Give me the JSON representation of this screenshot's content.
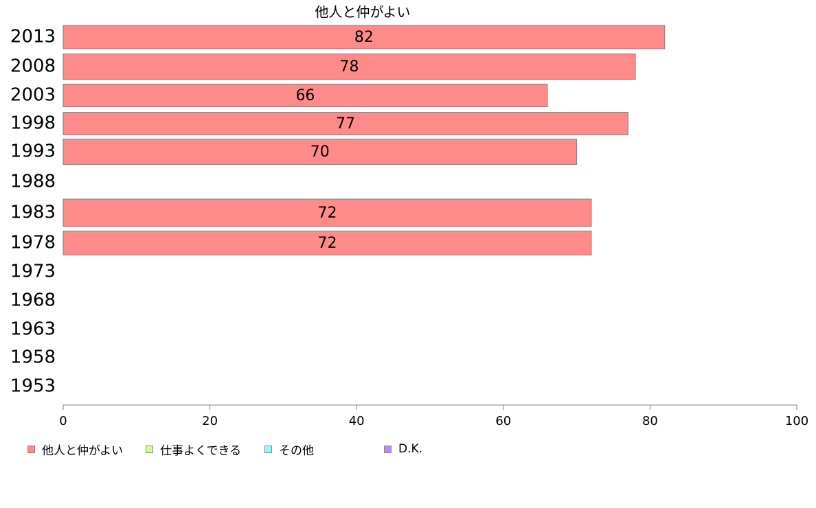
{
  "chart_data": {
    "type": "bar",
    "orientation": "horizontal",
    "title": "他人と仲がよい",
    "categories": [
      "2013",
      "2008",
      "2003",
      "1998",
      "1993",
      "1988",
      "1983",
      "1978",
      "1973",
      "1968",
      "1963",
      "1958",
      "1953"
    ],
    "series": [
      {
        "name": "他人と仲がよい",
        "color": "#ff8a8a",
        "values": [
          82,
          78,
          66,
          77,
          70,
          null,
          72,
          72,
          null,
          null,
          null,
          null,
          null
        ],
        "labels": [
          "82",
          "78",
          "66",
          "77",
          "70",
          "",
          "72",
          "72",
          "",
          "",
          "",
          "",
          ""
        ]
      }
    ],
    "xlim": [
      0,
      100
    ],
    "xticks": [
      "0",
      "20",
      "40",
      "60",
      "80",
      "100"
    ],
    "grid": false,
    "legend_position": "bottom-left",
    "legend": [
      {
        "label": "他人と仲がよい",
        "color": "#ff8a8a"
      },
      {
        "label": "仕事よくできる",
        "color": "#ccff88"
      },
      {
        "label": "その他",
        "color": "#88ffff"
      },
      {
        "label": "D.K.",
        "color": "#bb88ff"
      }
    ]
  }
}
